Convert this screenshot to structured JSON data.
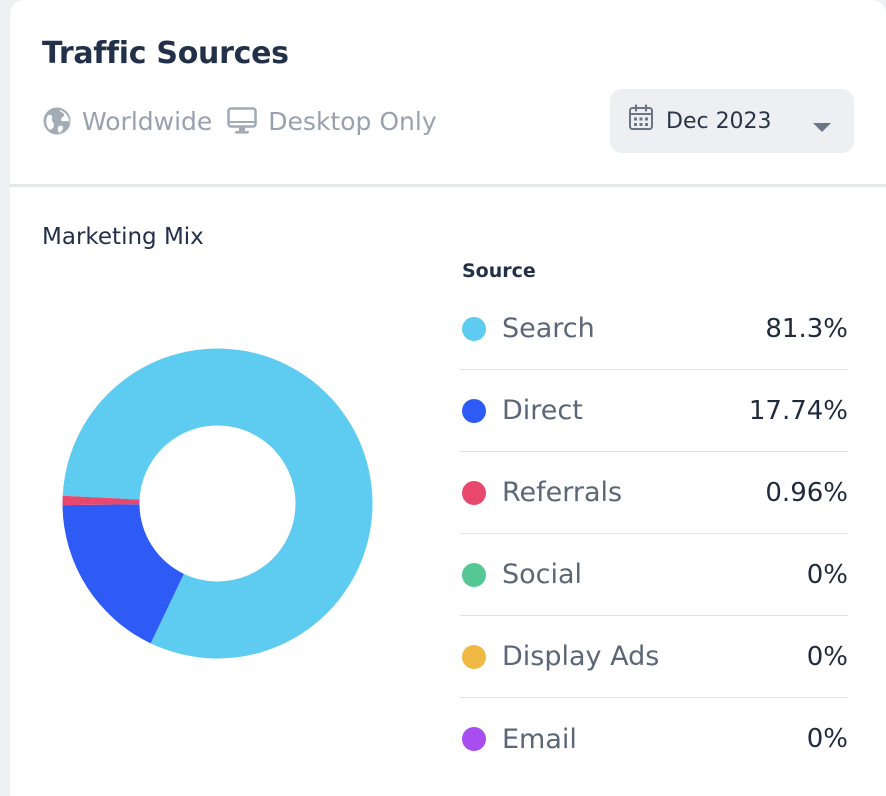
{
  "card": {
    "title": "Traffic Sources",
    "region_label": "Worldwide",
    "device_label": "Desktop Only",
    "region_icon": "globe-icon",
    "device_icon": "monitor-icon",
    "date_picker": {
      "value": "Dec 2023",
      "icon": "calendar-icon",
      "caret": "chevron-down-icon"
    }
  },
  "section": {
    "title": "Marketing Mix",
    "legend_heading": "Source"
  },
  "colors": {
    "search": "#5ecbf1",
    "direct": "#2e5bf5",
    "referrals": "#e8476e",
    "social": "#55c794",
    "display_ads": "#f0b944",
    "email": "#a84ef0"
  },
  "chart_data": {
    "type": "pie",
    "style": "donut",
    "title": "Marketing Mix",
    "legend_title": "Source",
    "legend_placement": "right",
    "categories": [
      "Search",
      "Direct",
      "Referrals",
      "Social",
      "Display Ads",
      "Email"
    ],
    "values": [
      81.3,
      17.74,
      0.96,
      0,
      0,
      0
    ],
    "value_labels": [
      "81.3%",
      "17.74%",
      "0.96%",
      "0%",
      "0%",
      "0%"
    ],
    "colors": [
      "#5ecbf1",
      "#2e5bf5",
      "#e8476e",
      "#55c794",
      "#f0b944",
      "#a84ef0"
    ]
  }
}
